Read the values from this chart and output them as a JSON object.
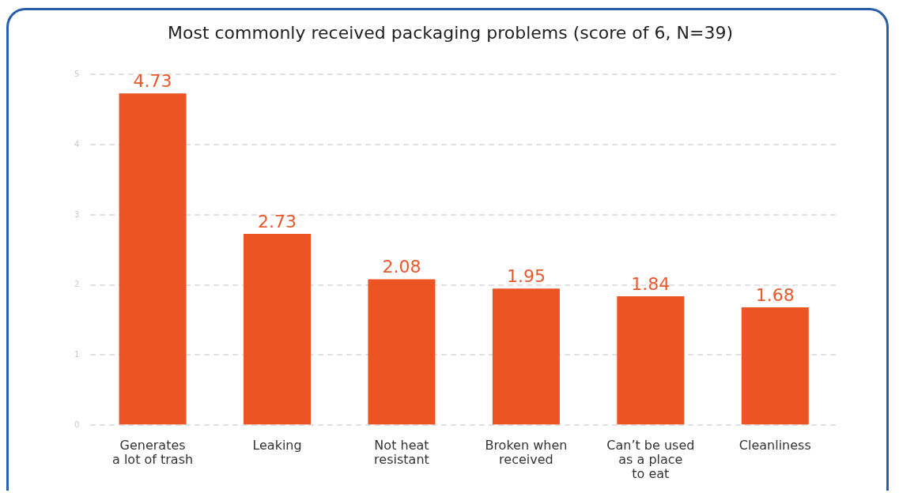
{
  "chart_data": {
    "type": "bar",
    "title": "Most commonly received packaging problems (score of 6, N=39)",
    "categories": [
      "Generates\na lot of trash",
      "Leaking",
      "Not heat\nresistant",
      "Broken when\nreceived",
      "Can’t be used\nas a place\nto eat",
      "Cleanliness"
    ],
    "values": [
      4.73,
      2.73,
      2.08,
      1.95,
      1.84,
      1.68
    ],
    "color": "#ec5424",
    "ylim": [
      0,
      5
    ],
    "yticks": [
      0,
      1,
      2,
      3,
      4,
      5
    ],
    "grid": "y",
    "data_labels": true
  }
}
